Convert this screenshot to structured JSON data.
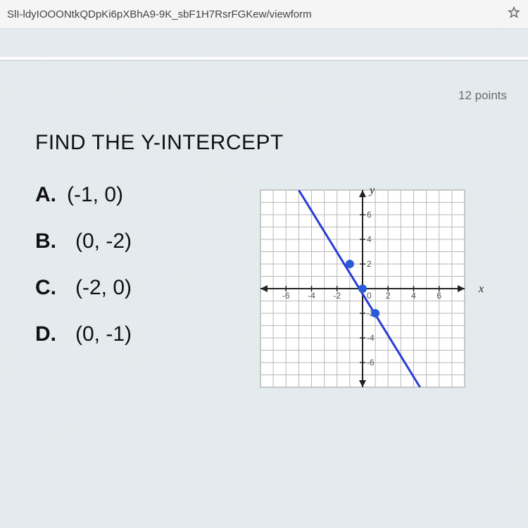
{
  "browser": {
    "url_fragment": "SlI-ldyIOOONtkQDpKi6pXBhA9-9K_sbF1H7RsrFGKew/viewform"
  },
  "question": {
    "points_label": "12 points",
    "title": "FIND THE Y-INTERCEPT",
    "options": [
      {
        "letter": "A.",
        "value": "(-1, 0)"
      },
      {
        "letter": "B.",
        "value": "(0, -2)"
      },
      {
        "letter": "C.",
        "value": "(-2, 0)"
      },
      {
        "letter": "D.",
        "value": "(0, -1)"
      }
    ]
  },
  "graph": {
    "type": "line-chart",
    "xlim": [
      -8,
      8
    ],
    "ylim": [
      -8,
      8
    ],
    "tick_step": 1,
    "labeled_ticks": [
      -6,
      -4,
      -2,
      2,
      4,
      6
    ],
    "grid_color": "#b8b8b8",
    "axis_color": "#222222",
    "background_color": "#ffffff",
    "x_axis_label": "x",
    "y_axis_label": "y",
    "tick_label_fontsize": 12,
    "axis_label_fontsize": 16,
    "line": {
      "color": "#2a3bd6",
      "width": 3,
      "points": [
        [
          -5,
          8
        ],
        [
          4.5,
          -8
        ]
      ]
    },
    "marked_points": {
      "color": "#2a5bd6",
      "radius": 6,
      "coords": [
        [
          -1,
          2
        ],
        [
          0,
          0
        ],
        [
          1,
          -2
        ]
      ]
    }
  }
}
